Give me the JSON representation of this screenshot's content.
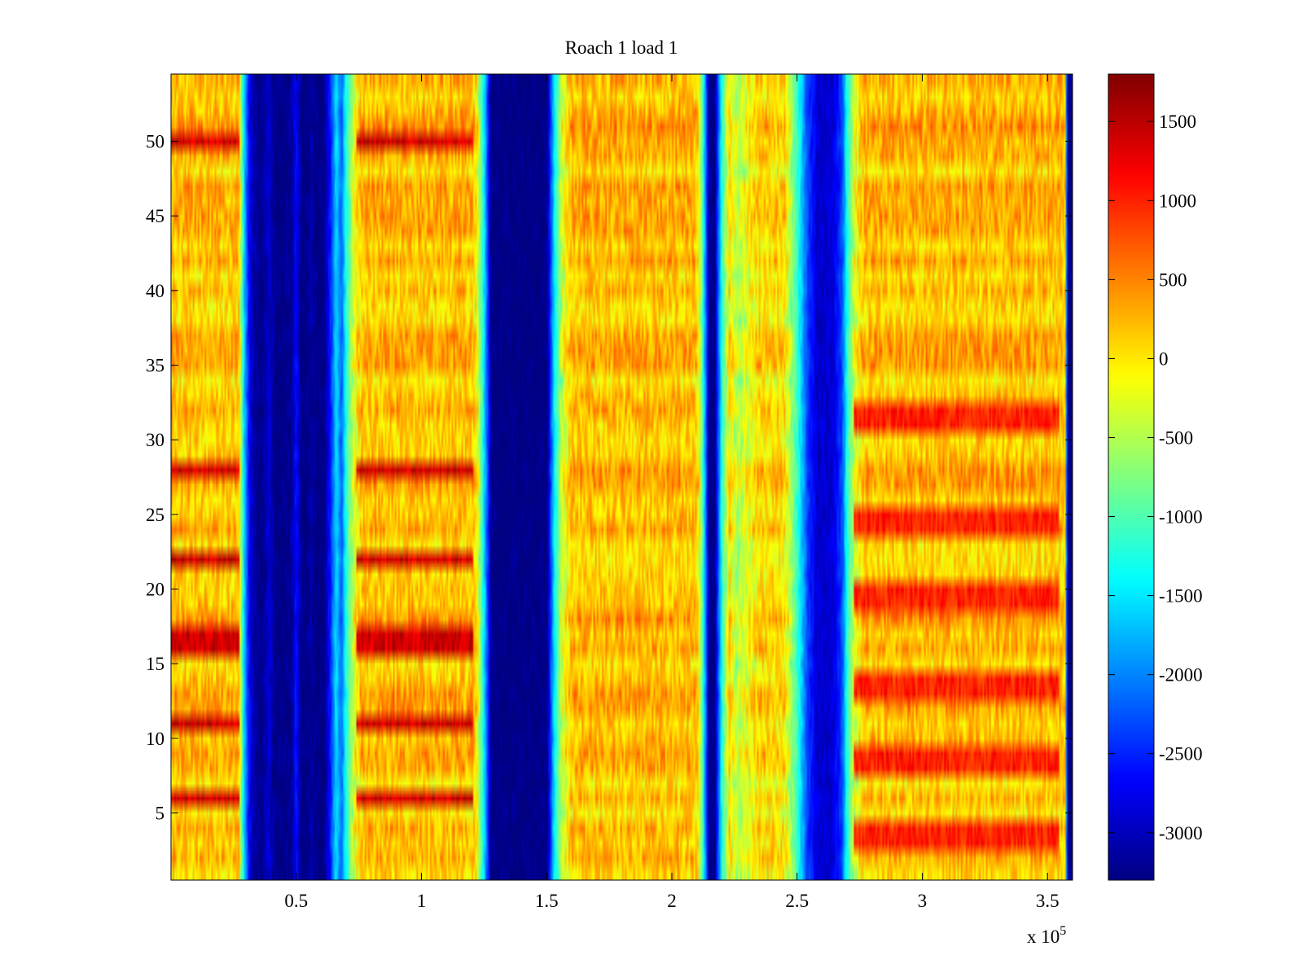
{
  "chart_data": {
    "type": "heatmap",
    "title": "Roach 1 load 1",
    "xlabel": "",
    "ylabel": "",
    "x_multiplier_label": "x 10",
    "x_multiplier_exponent": "5",
    "xlim": [
      0,
      3.6
    ],
    "ylim": [
      0.5,
      54.5
    ],
    "x_ticks": [
      0.5,
      1,
      1.5,
      2,
      2.5,
      3,
      3.5
    ],
    "x_tick_labels": [
      "0.5",
      "1",
      "1.5",
      "2",
      "2.5",
      "3",
      "3.5"
    ],
    "y_ticks": [
      5,
      10,
      15,
      20,
      25,
      30,
      35,
      40,
      45,
      50
    ],
    "y_tick_labels": [
      "5",
      "10",
      "15",
      "20",
      "25",
      "30",
      "35",
      "40",
      "45",
      "50"
    ],
    "rows": 54,
    "colorbar": {
      "colormap": "jet",
      "clim": [
        -3300,
        1800
      ],
      "ticks": [
        1500,
        1000,
        500,
        0,
        -500,
        -1000,
        -1500,
        -2000,
        -2500,
        -3000
      ],
      "tick_labels": [
        "1500",
        "1000",
        "500",
        "0",
        "-500",
        "-1000",
        "-1500",
        "-2000",
        "-2500",
        "-3000"
      ]
    },
    "column_profile": {
      "x": [
        0,
        0.27,
        0.29,
        0.31,
        0.33,
        0.36,
        0.39,
        0.42,
        0.44,
        0.48,
        0.5,
        0.52,
        0.54,
        0.56,
        0.58,
        0.61,
        0.64,
        0.66,
        0.68,
        0.7,
        0.73,
        0.76,
        1.2,
        1.22,
        1.25,
        1.28,
        1.5,
        1.53,
        1.56,
        1.6,
        2.1,
        2.12,
        2.15,
        2.17,
        2.2,
        2.23,
        2.26,
        2.35,
        2.45,
        2.5,
        2.54,
        2.58,
        2.64,
        2.68,
        2.7,
        2.73,
        2.77,
        3.55,
        3.57,
        3.58,
        3.6
      ],
      "value": [
        200,
        150,
        -1500,
        -2600,
        -3100,
        -3300,
        -2900,
        -3300,
        -3300,
        -3200,
        -2600,
        -3300,
        -3300,
        -3100,
        -3300,
        -3300,
        -2400,
        -1500,
        -2200,
        -1200,
        -300,
        200,
        200,
        0,
        -1500,
        -3300,
        -3300,
        -1500,
        -400,
        200,
        200,
        -800,
        -3300,
        -3300,
        -1200,
        0,
        -500,
        100,
        0,
        -1100,
        -2300,
        -2900,
        -2900,
        -2300,
        -1200,
        -300,
        200,
        200,
        100,
        -3300,
        -3300
      ]
    },
    "row_emphasis": {
      "rows": [
        6,
        11,
        16,
        17,
        22,
        28,
        50
      ],
      "columns_x": [
        [
          0,
          0.27
        ],
        [
          0.74,
          1.21
        ]
      ],
      "value": 1400
    },
    "right_band_emphasis": {
      "rows": [
        3,
        4,
        8,
        9,
        13,
        14,
        19,
        20,
        24,
        25,
        31,
        32
      ],
      "columns_x": [
        [
          2.73,
          3.55
        ]
      ],
      "value": 1000
    },
    "colors": {
      "axis": "#000000",
      "background": "#ffffff"
    }
  }
}
